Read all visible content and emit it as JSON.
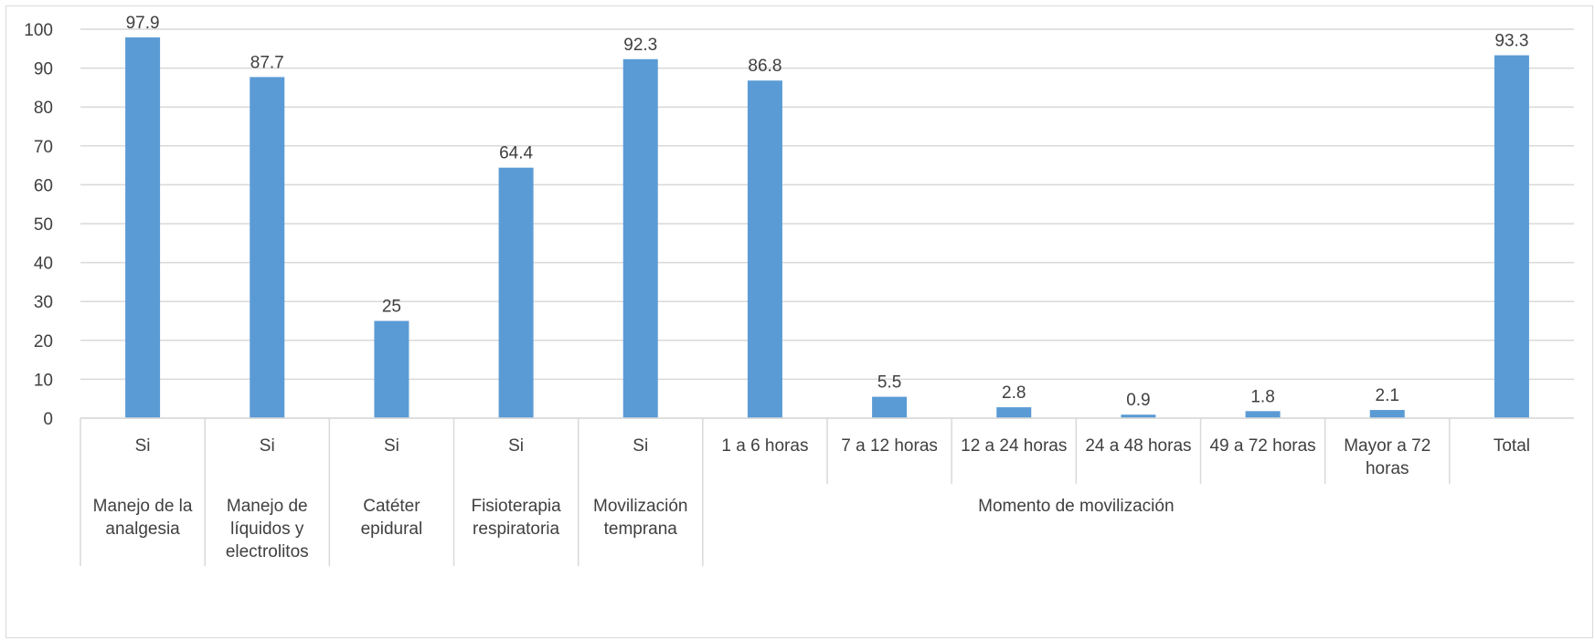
{
  "chart_data": {
    "type": "bar",
    "title": "",
    "xlabel": "",
    "ylabel": "",
    "ylim": [
      0,
      100
    ],
    "yticks": [
      0,
      10,
      20,
      30,
      40,
      50,
      60,
      70,
      80,
      90,
      100
    ],
    "grid": true,
    "legend": "none",
    "bar_color": "#5b9bd5",
    "grid_color": "#d9d9d9",
    "categories": [
      {
        "sub": "Si",
        "value": 97.9,
        "label": "97.9"
      },
      {
        "sub": "Si",
        "value": 87.7,
        "label": "87.7"
      },
      {
        "sub": "Si",
        "value": 25,
        "label": "25"
      },
      {
        "sub": "Si",
        "value": 64.4,
        "label": "64.4"
      },
      {
        "sub": "Si",
        "value": 92.3,
        "label": "92.3"
      },
      {
        "sub": "1 a 6 horas",
        "value": 86.8,
        "label": "86.8"
      },
      {
        "sub": "7 a 12 horas",
        "value": 5.5,
        "label": "5.5"
      },
      {
        "sub": "12 a 24 horas",
        "value": 2.8,
        "label": "2.8"
      },
      {
        "sub": "24 a 48 horas",
        "value": 0.9,
        "label": "0.9"
      },
      {
        "sub": "49 a 72 horas",
        "value": 1.8,
        "label": "1.8"
      },
      {
        "sub": "Mayor a 72 horas",
        "value": 2.1,
        "label": "2.1"
      },
      {
        "sub": "Total",
        "value": 93.3,
        "label": "93.3"
      }
    ],
    "groups": [
      {
        "label": "Manejo de la analgesia",
        "span": 1
      },
      {
        "label": "Manejo de líquidos y electrolitos",
        "span": 1
      },
      {
        "label": "Catéter epidural",
        "span": 1
      },
      {
        "label": "Fisioterapia respiratoria",
        "span": 1
      },
      {
        "label": "Movilización temprana",
        "span": 1
      },
      {
        "label": "Momento de movilización",
        "span": 6
      },
      {
        "label": "",
        "span": 1
      }
    ]
  }
}
